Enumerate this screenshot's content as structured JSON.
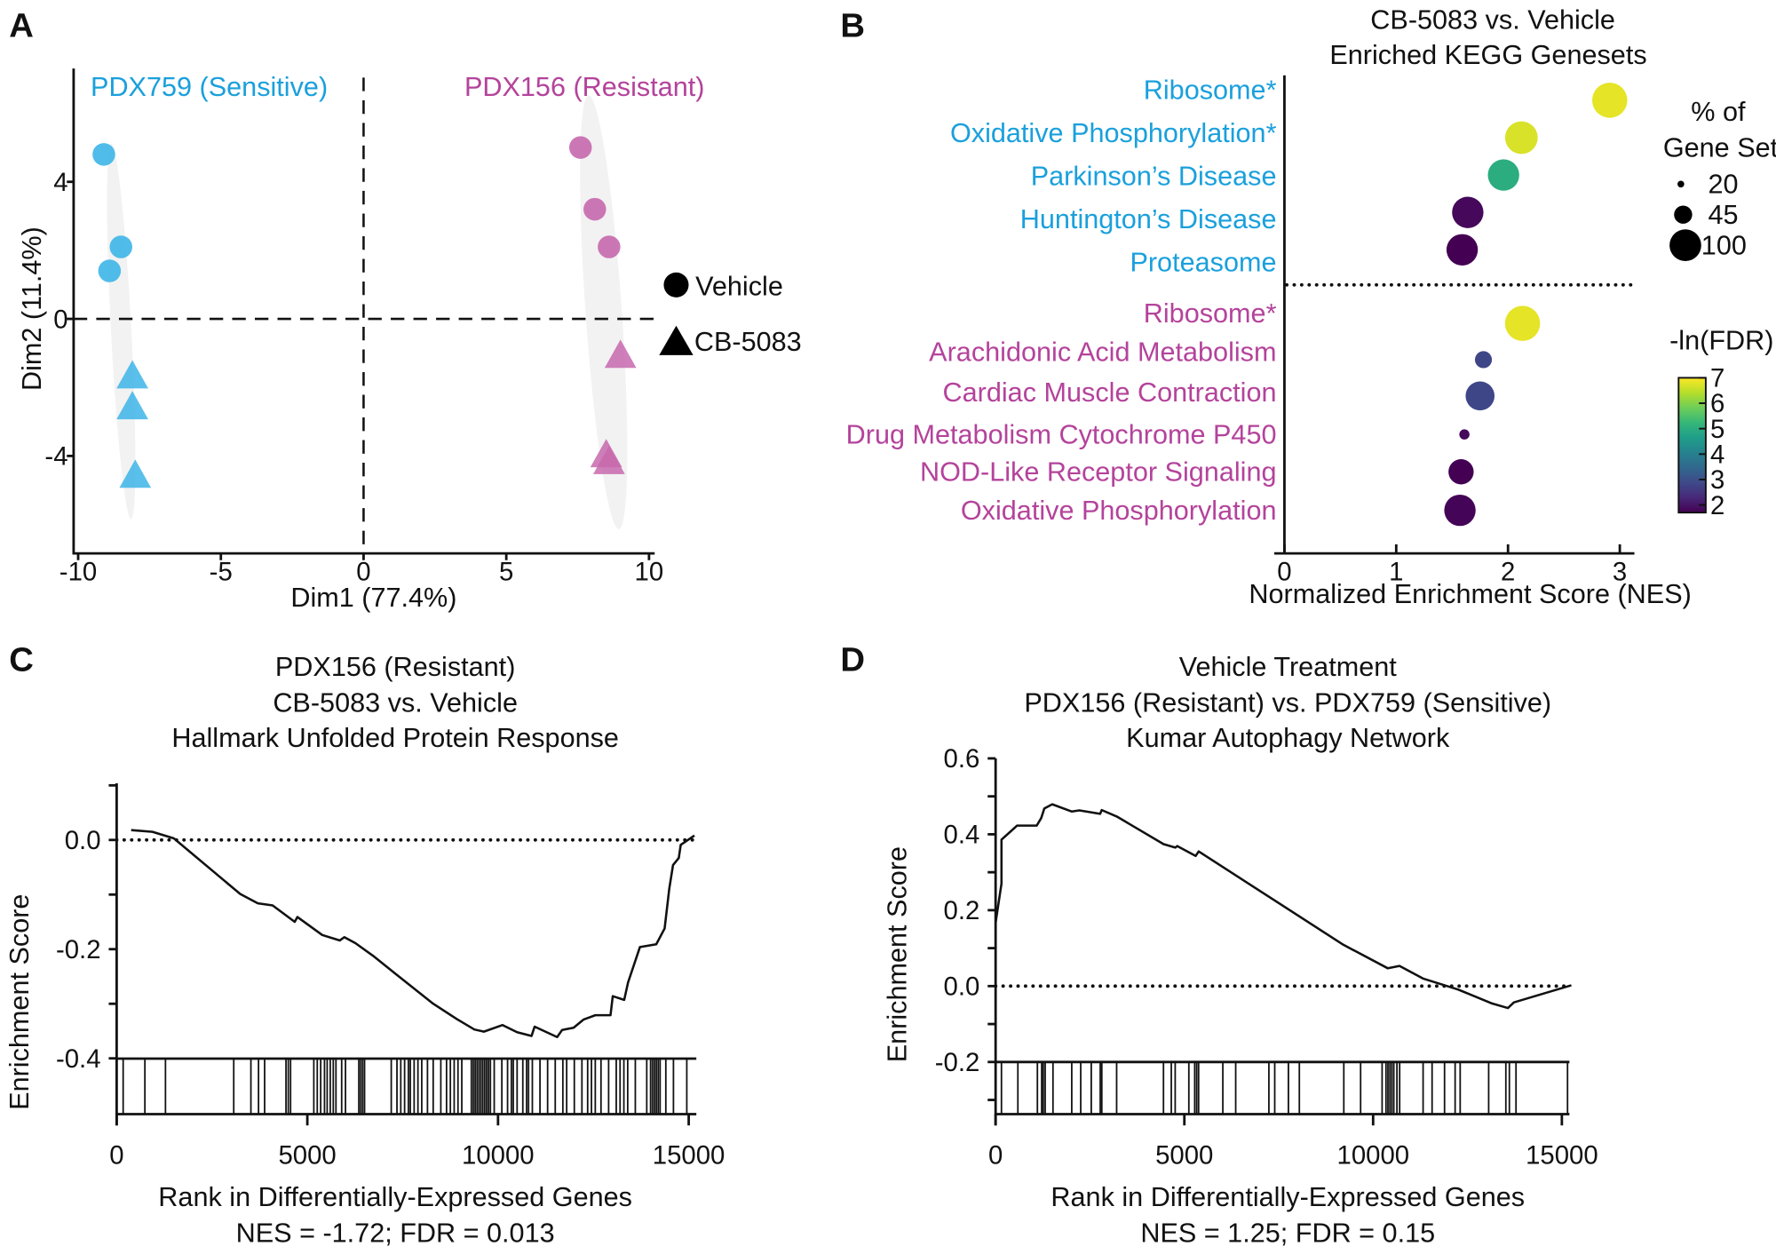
{
  "panel_letters": [
    "A",
    "B",
    "C",
    "D"
  ],
  "colors": {
    "sensitive": "#1aa0dc",
    "resistant": "#b4439b",
    "sensitive_marker": "#3db5e8",
    "resistant_marker": "#c768ad"
  },
  "chart_data": [
    {
      "type": "scatter",
      "xlabel": "Dim1 (77.4%)",
      "ylabel": "Dim2 (11.4%)",
      "xlim": [
        -10,
        10
      ],
      "ylim": [
        -5.5,
        6.8
      ],
      "xticks": [
        "-10",
        "-5",
        "0",
        "5",
        "10"
      ],
      "yticks": [
        "4",
        "0",
        "-4"
      ],
      "group_labels": [
        "PDX759 (Sensitive)",
        "PDX156 (Resistant)"
      ],
      "legend": {
        "placement": "right",
        "items": [
          {
            "shape": "circle",
            "label": "Vehicle"
          },
          {
            "shape": "triangle",
            "label": "CB-5083"
          }
        ]
      },
      "points": [
        {
          "group": "PDX759 (Sensitive)",
          "treatment": "Vehicle",
          "x": -9.1,
          "y": 4.8
        },
        {
          "group": "PDX759 (Sensitive)",
          "treatment": "Vehicle",
          "x": -8.5,
          "y": 2.1
        },
        {
          "group": "PDX759 (Sensitive)",
          "treatment": "Vehicle",
          "x": -8.9,
          "y": 1.4
        },
        {
          "group": "PDX759 (Sensitive)",
          "treatment": "CB-5083",
          "x": -8.1,
          "y": -1.7
        },
        {
          "group": "PDX759 (Sensitive)",
          "treatment": "CB-5083",
          "x": -8.1,
          "y": -2.6
        },
        {
          "group": "PDX759 (Sensitive)",
          "treatment": "CB-5083",
          "x": -8.0,
          "y": -4.6
        },
        {
          "group": "PDX156 (Resistant)",
          "treatment": "Vehicle",
          "x": 7.6,
          "y": 5.0
        },
        {
          "group": "PDX156 (Resistant)",
          "treatment": "Vehicle",
          "x": 8.1,
          "y": 3.2
        },
        {
          "group": "PDX156 (Resistant)",
          "treatment": "Vehicle",
          "x": 8.6,
          "y": 2.1
        },
        {
          "group": "PDX156 (Resistant)",
          "treatment": "CB-5083",
          "x": 9.0,
          "y": -1.1
        },
        {
          "group": "PDX156 (Resistant)",
          "treatment": "CB-5083",
          "x": 8.5,
          "y": -4.0
        },
        {
          "group": "PDX156 (Resistant)",
          "treatment": "CB-5083",
          "x": 8.6,
          "y": -4.2
        }
      ]
    },
    {
      "type": "scatter",
      "title": [
        "CB-5083 vs. Vehicle",
        "Enriched KEGG Genesets"
      ],
      "xlabel": "Normalized Enrichment Score (NES)",
      "xlim": [
        0,
        3
      ],
      "xticks": [
        "0",
        "1",
        "2",
        "3"
      ],
      "size_legend": {
        "title": [
          "% of",
          "Gene Set"
        ],
        "values": [
          20,
          45,
          100
        ]
      },
      "color_legend": {
        "title": "-ln(FDR)",
        "ticks": [
          "7",
          "6",
          "5",
          "4",
          "3",
          "2"
        ],
        "range": [
          1.7,
          7
        ],
        "colormap": "viridis"
      },
      "categories": [
        {
          "label": "Ribosome*",
          "group": "sensitive",
          "nes": 2.91,
          "pct": 100,
          "neg_ln_fdr": 6.8
        },
        {
          "label": "Oxidative Phosphorylation*",
          "group": "sensitive",
          "nes": 2.12,
          "pct": 90,
          "neg_ln_fdr": 6.7
        },
        {
          "label": "Parkinson’s Disease",
          "group": "sensitive",
          "nes": 1.96,
          "pct": 85,
          "neg_ln_fdr": 5.0
        },
        {
          "label": "Huntington’s Disease",
          "group": "sensitive",
          "nes": 1.64,
          "pct": 85,
          "neg_ln_fdr": 1.8
        },
        {
          "label": "Proteasome",
          "group": "sensitive",
          "nes": 1.59,
          "pct": 85,
          "neg_ln_fdr": 1.7
        },
        {
          "label": "Ribosome*",
          "group": "resistant",
          "nes": 2.13,
          "pct": 100,
          "neg_ln_fdr": 6.8
        },
        {
          "label": "Arachidonic Acid Metabolism",
          "group": "resistant",
          "nes": 1.78,
          "pct": 35,
          "neg_ln_fdr": 2.8
        },
        {
          "label": "Cardiac Muscle Contraction",
          "group": "resistant",
          "nes": 1.75,
          "pct": 75,
          "neg_ln_fdr": 2.8
        },
        {
          "label": "Drug Metabolism Cytochrome P450",
          "group": "resistant",
          "nes": 1.61,
          "pct": 20,
          "neg_ln_fdr": 1.8
        },
        {
          "label": "NOD-Like Receptor Signaling",
          "group": "resistant",
          "nes": 1.58,
          "pct": 60,
          "neg_ln_fdr": 1.7
        },
        {
          "label": "Oxidative Phosphorylation",
          "group": "resistant",
          "nes": 1.57,
          "pct": 85,
          "neg_ln_fdr": 1.75
        }
      ]
    },
    {
      "type": "line",
      "title": [
        "PDX156 (Resistant)",
        "CB-5083 vs. Vehicle",
        "Hallmark Unfolded Protein Response"
      ],
      "xlabel": "Rank in Differentially-Expressed Genes",
      "ylabel": "Enrichment Score",
      "footer": "NES = -1.72; FDR = 0.013",
      "xlim": [
        0,
        15000
      ],
      "ylim": [
        -0.5,
        0.1
      ],
      "xticks": [
        "0",
        "5000",
        "10000",
        "15000"
      ],
      "yticks": [
        "0.0",
        "-0.2",
        "-0.4"
      ],
      "x": [
        380,
        940,
        1500,
        3240,
        3700,
        4090,
        4670,
        4740,
        5390,
        5850,
        5970,
        6260,
        6720,
        7330,
        8300,
        8920,
        9380,
        9630,
        10120,
        10500,
        10880,
        10960,
        11550,
        11680,
        11980,
        12240,
        12550,
        12950,
        13010,
        13310,
        13410,
        13720,
        14150,
        14370,
        14490,
        14590,
        14740,
        14790,
        15150
      ],
      "y": [
        0.018,
        0.015,
        0.003,
        -0.099,
        -0.116,
        -0.12,
        -0.15,
        -0.141,
        -0.174,
        -0.184,
        -0.178,
        -0.189,
        -0.212,
        -0.246,
        -0.3,
        -0.328,
        -0.347,
        -0.351,
        -0.339,
        -0.352,
        -0.359,
        -0.342,
        -0.361,
        -0.348,
        -0.344,
        -0.329,
        -0.321,
        -0.321,
        -0.286,
        -0.293,
        -0.261,
        -0.196,
        -0.191,
        -0.162,
        -0.089,
        -0.046,
        -0.033,
        -0.009,
        0.008
      ],
      "hits": [
        170,
        740,
        1280,
        3070,
        3520,
        3720,
        3880,
        4440,
        4500,
        4560,
        5170,
        5260,
        5350,
        5450,
        5520,
        5600,
        5680,
        5750,
        5900,
        6000,
        6350,
        6400,
        6450,
        6500,
        7200,
        7350,
        7450,
        7550,
        7650,
        7700,
        7800,
        7900,
        8000,
        8150,
        8300,
        8500,
        8650,
        8750,
        8850,
        8950,
        9050,
        9300,
        9350,
        9400,
        9450,
        9500,
        9550,
        9600,
        9650,
        9700,
        9750,
        9800,
        9900,
        10100,
        10250,
        10350,
        10400,
        10500,
        10650,
        10750,
        10800,
        10900,
        11100,
        11300,
        11500,
        11700,
        11800,
        12000,
        12200,
        12350,
        12450,
        12550,
        12700,
        12900,
        13100,
        13200,
        13300,
        13400,
        13600,
        13900,
        14000,
        14050,
        14100,
        14150,
        14200,
        14250,
        14400,
        14600,
        14950
      ]
    },
    {
      "type": "line",
      "title": [
        "Vehicle Treatment",
        "PDX156 (Resistant) vs. PDX759 (Sensitive)",
        "Kumar Autophagy Network"
      ],
      "xlabel": "Rank in Differentially-Expressed Genes",
      "ylabel": "Enrichment Score",
      "footer": "NES = 1.25; FDR = 0.15",
      "xlim": [
        0,
        15000
      ],
      "ylim": [
        -0.34,
        0.6
      ],
      "xticks": [
        "0",
        "5000",
        "10000",
        "15000"
      ],
      "yticks": [
        "0.6",
        "0.4",
        "0.2",
        "0.0",
        "-0.2"
      ],
      "x": [
        0,
        155,
        155,
        570,
        1090,
        1210,
        1290,
        1500,
        2020,
        2220,
        2770,
        2810,
        3210,
        4450,
        4760,
        4810,
        5300,
        5380,
        9210,
        10390,
        10700,
        11320,
        12250,
        13130,
        13570,
        13730,
        15250
      ],
      "y": [
        0.167,
        0.27,
        0.386,
        0.423,
        0.423,
        0.443,
        0.468,
        0.479,
        0.46,
        0.463,
        0.454,
        0.464,
        0.447,
        0.374,
        0.365,
        0.369,
        0.343,
        0.355,
        0.109,
        0.047,
        0.053,
        0.02,
        -0.009,
        -0.045,
        -0.058,
        -0.043,
        0.002
      ],
      "hits": [
        0,
        155,
        590,
        1107,
        1220,
        1262,
        1313,
        1520,
        2017,
        2255,
        2534,
        2772,
        2813,
        3206,
        4447,
        4654,
        4757,
        5119,
        5274,
        5326,
        5377,
        6019,
        6360,
        7239,
        7394,
        7756,
        8046,
        9224,
        9669,
        10238,
        10341,
        10393,
        10445,
        10496,
        10548,
        10631,
        10703,
        11324,
        11562,
        11892,
        12172,
        12306,
        13061,
        13516,
        13609,
        13785,
        15150
      ]
    }
  ]
}
